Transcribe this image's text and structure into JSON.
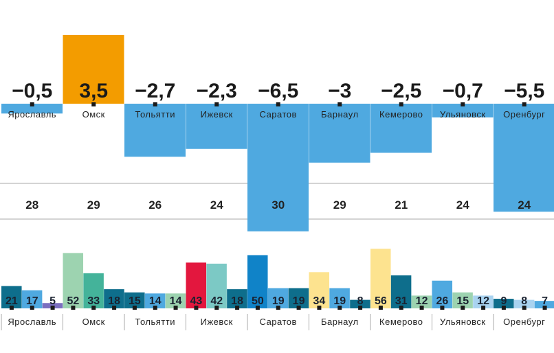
{
  "chart_data": [
    {
      "type": "bar",
      "categories": [
        "Ярославль",
        "Омск",
        "Тольятти",
        "Ижевск",
        "Саратов",
        "Барнаул",
        "Кемерово",
        "Ульяновск",
        "Оренбург"
      ],
      "values": [
        -0.5,
        3.5,
        -2.7,
        -2.3,
        -6.5,
        -3,
        -2.5,
        -0.7,
        -5.5
      ],
      "labels": [
        "−0,5",
        "3,5",
        "−2,7",
        "−2,3",
        "−6,5",
        "−3",
        "−2,5",
        "−0,7",
        "−5,5"
      ],
      "colors": {
        "positive": "#f39c00",
        "negative": "#4fa9e0"
      }
    },
    {
      "type": "table",
      "categories": [
        "Ярославль",
        "Омск",
        "Тольятти",
        "Ижевск",
        "Саратов",
        "Барнаул",
        "Кемерово",
        "Ульяновск",
        "Оренбург"
      ],
      "values": [
        28,
        29,
        26,
        24,
        30,
        29,
        21,
        24,
        24
      ]
    },
    {
      "type": "bar",
      "categories": [
        "Ярославль",
        "Омск",
        "Тольятти",
        "Ижевск",
        "Саратов",
        "Барнаул",
        "Кемерово",
        "Ульяновск",
        "Оренбург"
      ],
      "groups": [
        {
          "values": [
            21,
            17,
            5
          ],
          "colors": [
            "#0e6e8c",
            "#4fa9e0",
            "#7b6fbf"
          ]
        },
        {
          "values": [
            52,
            33,
            18
          ],
          "colors": [
            "#9dd3b0",
            "#44b39a",
            "#0e6e8c"
          ]
        },
        {
          "values": [
            15,
            14,
            14
          ],
          "colors": [
            "#0e6e8c",
            "#4fa9e0",
            "#9dd3b0"
          ]
        },
        {
          "values": [
            43,
            42,
            18
          ],
          "colors": [
            "#e3173e",
            "#7cc9c5",
            "#0e6e8c"
          ]
        },
        {
          "values": [
            50,
            19,
            19
          ],
          "colors": [
            "#1083c8",
            "#4fa9e0",
            "#0e6e8c"
          ]
        },
        {
          "values": [
            34,
            19,
            8
          ],
          "colors": [
            "#fde38f",
            "#4fa9e0",
            "#0e6e8c"
          ]
        },
        {
          "values": [
            56,
            31,
            12
          ],
          "colors": [
            "#fde38f",
            "#0e6e8c",
            "#9dd3b0"
          ]
        },
        {
          "values": [
            26,
            15,
            12
          ],
          "colors": [
            "#4fa9e0",
            "#9dd3b0",
            "#a9d3f0"
          ]
        },
        {
          "values": [
            9,
            8,
            7
          ],
          "colors": [
            "#0e6e8c",
            "#a9d3f0",
            "#4fa9e0"
          ]
        }
      ]
    }
  ]
}
